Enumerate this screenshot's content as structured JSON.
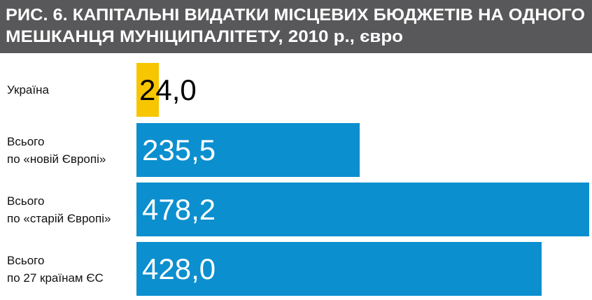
{
  "chart_data": {
    "type": "bar",
    "title": "РИС. 6. КАПІТАЛЬНІ ВИДАТКИ МІСЦЕВИХ БЮДЖЕТІВ НА ОДНОГО\nМЕШКАНЦЯ МУНІЦИПАЛІТЕТУ, 2010 р., євро",
    "categories": [
      "Україна",
      "Всього\nпо «новій Європі»",
      "Всього\nпо «старій Європі»",
      "Всього\nпо 27 країнам ЄС"
    ],
    "values": [
      24.0,
      235.5,
      478.2,
      428.0
    ],
    "value_labels": [
      "24,0",
      "235,5",
      "478,2",
      "428,0"
    ],
    "colors": [
      "#f7c600",
      "#0b8fcf",
      "#0b8fcf",
      "#0b8fcf"
    ]
  }
}
